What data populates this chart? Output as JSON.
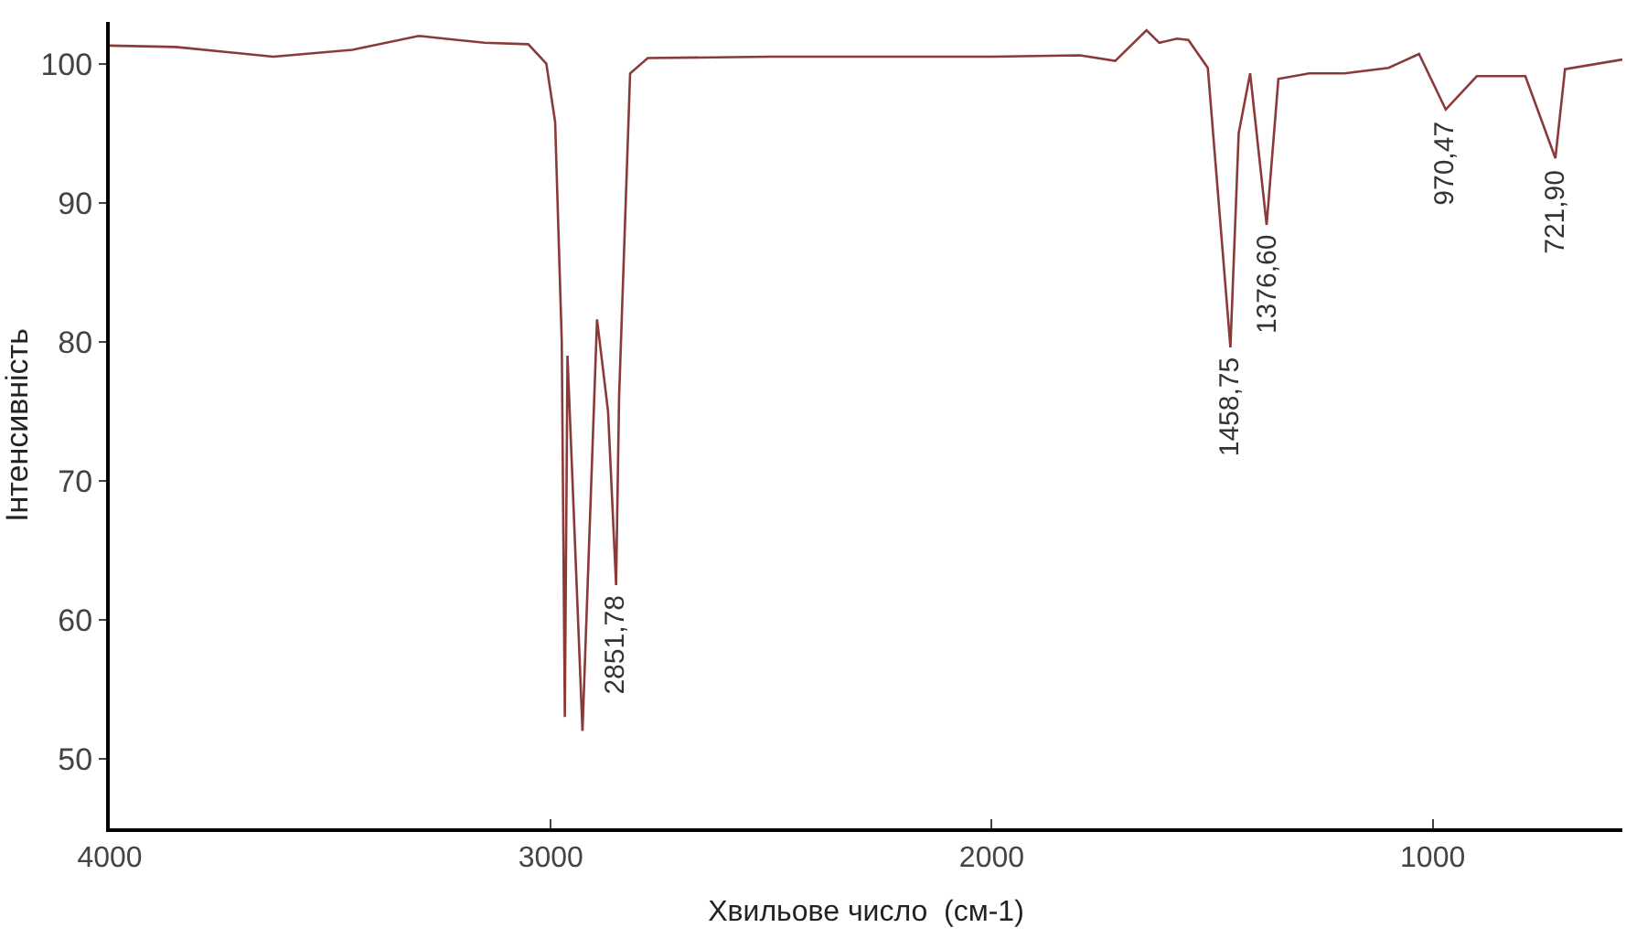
{
  "chart_data": {
    "type": "line",
    "xlabel": "Хвильове число  (см-1)",
    "ylabel": "Інтенсивність",
    "x": [
      4000,
      3850,
      3629,
      3450,
      3299,
      3150,
      3051,
      3010,
      2990,
      2975,
      2968,
      2962,
      2928,
      2895,
      2870,
      2851.78,
      2845,
      2820,
      2780,
      2500,
      2000,
      1800,
      1720,
      1649,
      1620,
      1580,
      1554,
      1510,
      1458.75,
      1440,
      1414,
      1376.6,
      1350,
      1280,
      1200,
      1100,
      1031,
      970.47,
      900,
      790,
      721.9,
      700,
      570
    ],
    "series": [
      {
        "color": "#8b3a3a",
        "values": [
          101.3,
          101.2,
          100.5,
          101,
          102,
          101.5,
          101.4,
          100,
          95.8,
          80,
          53,
          79,
          52,
          81.6,
          75,
          62.5,
          76,
          99.3,
          100.4,
          100.5,
          100.5,
          100.6,
          100.2,
          102.4,
          101.5,
          101.8,
          101.7,
          99.7,
          79.6,
          95,
          99.3,
          88.4,
          98.9,
          99.3,
          99.3,
          99.7,
          100.7,
          96.7,
          99.1,
          99.1,
          93.2,
          99.6,
          100.3
        ]
      }
    ],
    "annotations": [
      {
        "text": "2851,78",
        "x": 2851.78,
        "y": 62.5
      },
      {
        "text": "1458,75",
        "x": 1458.75,
        "y": 79.6
      },
      {
        "text": "1376,60",
        "x": 1376.6,
        "y": 88.4
      },
      {
        "text": "970,47",
        "x": 970.47,
        "y": 96.7
      },
      {
        "text": "721,90",
        "x": 721.9,
        "y": 93.2
      }
    ],
    "xlim": [
      4000,
      570
    ],
    "xticks": [
      4000,
      3000,
      2000,
      1000
    ],
    "ylim": [
      45,
      103
    ],
    "yticks": [
      50,
      60,
      70,
      80,
      90,
      100
    ],
    "marker": "none",
    "line_style": "solid"
  }
}
